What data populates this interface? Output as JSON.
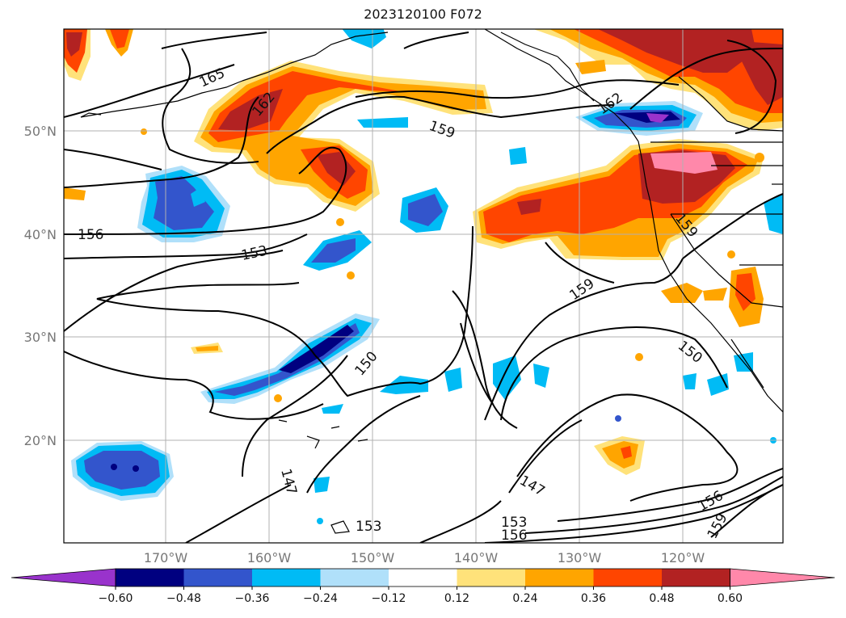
{
  "title": "2023120100 F072",
  "map": {
    "lon_ticks": [
      "170°W",
      "160°W",
      "150°W",
      "140°W",
      "130°W",
      "120°W"
    ],
    "lat_ticks": [
      "50°N",
      "40°N",
      "30°N",
      "20°N"
    ],
    "contour_labels": [
      "165",
      "162",
      "162",
      "159",
      "159",
      "159",
      "156",
      "153",
      "153",
      "150",
      "150",
      "147",
      "147",
      "156",
      "159"
    ]
  },
  "colorbar": {
    "ticks": [
      "−0.60",
      "−0.48",
      "−0.36",
      "−0.24",
      "−0.12",
      "0.12",
      "0.24",
      "0.36",
      "0.48",
      "0.60"
    ],
    "colors": [
      "#9933cc",
      "#000080",
      "#3355cc",
      "#00bbf5",
      "#b0e0fa",
      "#ffffff",
      "#ffe27a",
      "#ffa500",
      "#ff4500",
      "#b22222",
      "#ff88aa",
      "#ff88aa"
    ]
  }
}
